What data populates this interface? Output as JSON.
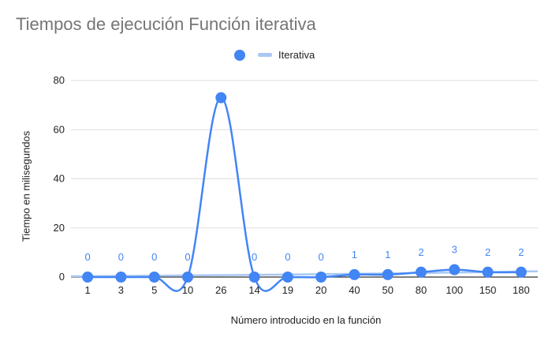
{
  "chart_data": {
    "type": "line",
    "title": "Tiempos de ejecución Función iterativa",
    "xlabel": "Número introducido en la función",
    "ylabel": "Tiempo en milisegundos",
    "categories": [
      "1",
      "3",
      "5",
      "10",
      "26",
      "14",
      "19",
      "20",
      "40",
      "50",
      "80",
      "100",
      "150",
      "180"
    ],
    "series": [
      {
        "name": "Iterativa",
        "values": [
          0,
          0,
          0,
          0,
          73,
          0,
          0,
          0,
          1,
          1,
          2,
          3,
          2,
          2
        ],
        "data_labels": [
          "0",
          "0",
          "0",
          "0",
          "",
          "0",
          "0",
          "0",
          "1",
          "1",
          "2",
          "3",
          "2",
          "2"
        ],
        "color": "#4285f4"
      }
    ],
    "trendline": {
      "color": "#a9c8f3",
      "type": "exponential"
    },
    "ylim": [
      0,
      80
    ],
    "yticks": [
      0,
      20,
      40,
      60,
      80
    ],
    "grid": "horizontal",
    "legend_position": "top"
  }
}
